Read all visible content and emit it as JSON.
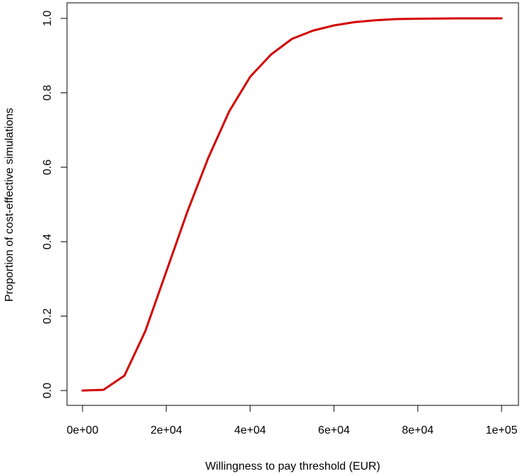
{
  "chart_data": {
    "type": "line",
    "title": "",
    "xlabel": "Willingness to pay threshold (EUR)",
    "ylabel": "Proportion of cost-effective simulations",
    "xlim": [
      0,
      100000
    ],
    "ylim": [
      0,
      1
    ],
    "x_ticks": [
      0,
      20000,
      40000,
      60000,
      80000,
      100000
    ],
    "x_tick_labels": [
      "0e+00",
      "2e+04",
      "4e+04",
      "6e+04",
      "8e+04",
      "1e+05"
    ],
    "y_ticks": [
      0,
      0.2,
      0.4,
      0.6,
      0.8,
      1
    ],
    "y_tick_labels": [
      "0.0",
      "0.2",
      "0.4",
      "0.6",
      "0.8",
      "1.0"
    ],
    "grid": false,
    "series": [
      {
        "color": "#d40000",
        "x": [
          0,
          5000,
          10000,
          15000,
          20000,
          25000,
          30000,
          35000,
          40000,
          45000,
          50000,
          55000,
          60000,
          65000,
          70000,
          75000,
          80000,
          85000,
          90000,
          95000,
          100000
        ],
        "y": [
          0.0,
          0.002,
          0.04,
          0.16,
          0.32,
          0.48,
          0.625,
          0.75,
          0.843,
          0.903,
          0.945,
          0.967,
          0.981,
          0.99,
          0.995,
          0.998,
          0.999,
          0.9995,
          1.0,
          1.0,
          1.0
        ]
      }
    ]
  }
}
